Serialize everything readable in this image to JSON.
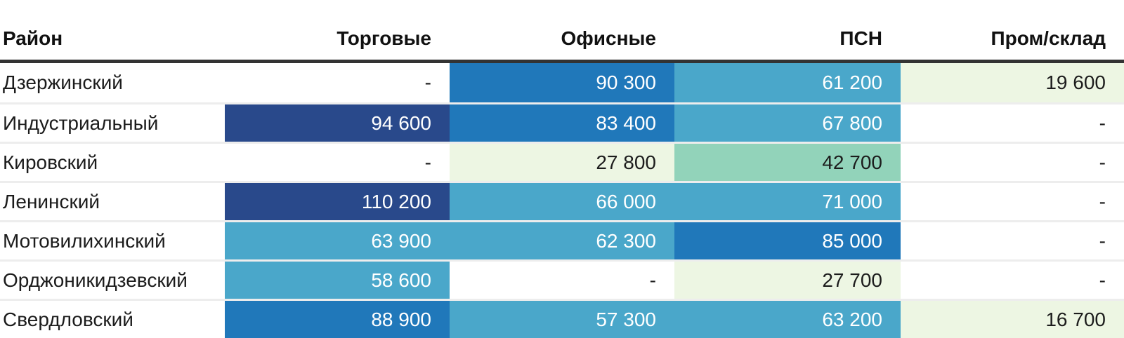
{
  "table": {
    "columns": [
      {
        "key": "district",
        "label": "Район",
        "align": "left"
      },
      {
        "key": "retail",
        "label": "Торговые",
        "align": "right"
      },
      {
        "key": "office",
        "label": "Офисные",
        "align": "right"
      },
      {
        "key": "psn",
        "label": "ПСН",
        "align": "right"
      },
      {
        "key": "industrial",
        "label": "Пром/склад",
        "align": "right"
      }
    ],
    "rows": [
      {
        "district": "Дзержинский",
        "cells": [
          {
            "text": "-",
            "bg": "#ffffff",
            "fg": "#1c1c1c"
          },
          {
            "text": "90 300",
            "bg": "#2078ba",
            "fg": "#ffffff"
          },
          {
            "text": "61 200",
            "bg": "#4aa7ca",
            "fg": "#ffffff"
          },
          {
            "text": "19 600",
            "bg": "#edf6e3",
            "fg": "#1c1c1c"
          }
        ]
      },
      {
        "district": "Индустриальный",
        "cells": [
          {
            "text": "94 600",
            "bg": "#29498b",
            "fg": "#ffffff"
          },
          {
            "text": "83 400",
            "bg": "#2078ba",
            "fg": "#ffffff"
          },
          {
            "text": "67 800",
            "bg": "#4aa7ca",
            "fg": "#ffffff"
          },
          {
            "text": "-",
            "bg": "#ffffff",
            "fg": "#1c1c1c"
          }
        ]
      },
      {
        "district": "Кировский",
        "cells": [
          {
            "text": "-",
            "bg": "#ffffff",
            "fg": "#1c1c1c"
          },
          {
            "text": "27 800",
            "bg": "#edf6e3",
            "fg": "#1c1c1c"
          },
          {
            "text": "42 700",
            "bg": "#92d3ba",
            "fg": "#1c1c1c"
          },
          {
            "text": "-",
            "bg": "#ffffff",
            "fg": "#1c1c1c"
          }
        ]
      },
      {
        "district": "Ленинский",
        "cells": [
          {
            "text": "110 200",
            "bg": "#29498b",
            "fg": "#ffffff"
          },
          {
            "text": "66 000",
            "bg": "#4aa7ca",
            "fg": "#ffffff"
          },
          {
            "text": "71 000",
            "bg": "#4aa7ca",
            "fg": "#ffffff"
          },
          {
            "text": "-",
            "bg": "#ffffff",
            "fg": "#1c1c1c"
          }
        ]
      },
      {
        "district": "Мотовилихинский",
        "cells": [
          {
            "text": "63 900",
            "bg": "#4aa7ca",
            "fg": "#ffffff"
          },
          {
            "text": "62 300",
            "bg": "#4aa7ca",
            "fg": "#ffffff"
          },
          {
            "text": "85 000",
            "bg": "#2078ba",
            "fg": "#ffffff"
          },
          {
            "text": "-",
            "bg": "#ffffff",
            "fg": "#1c1c1c"
          }
        ]
      },
      {
        "district": "Орджоникидзевский",
        "cells": [
          {
            "text": "58 600",
            "bg": "#4aa7ca",
            "fg": "#ffffff"
          },
          {
            "text": "-",
            "bg": "#ffffff",
            "fg": "#1c1c1c"
          },
          {
            "text": "27 700",
            "bg": "#edf6e3",
            "fg": "#1c1c1c"
          },
          {
            "text": "-",
            "bg": "#ffffff",
            "fg": "#1c1c1c"
          }
        ]
      },
      {
        "district": "Свердловский",
        "cells": [
          {
            "text": "88 900",
            "bg": "#2078ba",
            "fg": "#ffffff"
          },
          {
            "text": "57 300",
            "bg": "#4aa7ca",
            "fg": "#ffffff"
          },
          {
            "text": "63 200",
            "bg": "#4aa7ca",
            "fg": "#ffffff"
          },
          {
            "text": "16 700",
            "bg": "#edf6e3",
            "fg": "#1c1c1c"
          }
        ]
      }
    ]
  },
  "colors": {
    "navy": "#29498b",
    "medium_blue": "#2078ba",
    "teal_blue": "#4aa7ca",
    "mint_green": "#92d3ba",
    "pale_green": "#edf6e3",
    "empty_cell": "#ffffff",
    "header_border": "#333333",
    "row_separator": "#ededed",
    "text_dark": "#1c1c1c",
    "text_light": "#ffffff"
  },
  "chart_data": {
    "type": "heatmap",
    "title": "",
    "columns": [
      "Торговые",
      "Офисные",
      "ПСН",
      "Пром/склад"
    ],
    "rows": [
      "Дзержинский",
      "Индустриальный",
      "Кировский",
      "Ленинский",
      "Мотовилихинский",
      "Орджоникидзевский",
      "Свердловский"
    ],
    "values": [
      [
        null,
        90300,
        61200,
        19600
      ],
      [
        94600,
        83400,
        67800,
        null
      ],
      [
        null,
        27800,
        42700,
        null
      ],
      [
        110200,
        66000,
        71000,
        null
      ],
      [
        63900,
        62300,
        85000,
        null
      ],
      [
        58600,
        null,
        27700,
        null
      ],
      [
        88900,
        57300,
        63200,
        16700
      ]
    ],
    "missing_marker": "-",
    "color_scale": "low pale-green #edf6e3 → mint #92d3ba → teal #4aa7ca → blue #2078ba → navy #29498b high",
    "legend_position": "none",
    "grid": "horizontal row separators only"
  }
}
